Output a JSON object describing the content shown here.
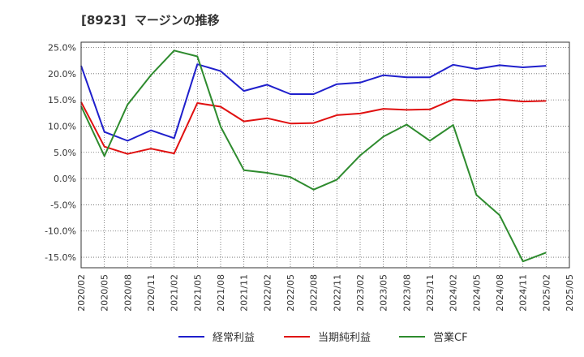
{
  "title": "[8923]  マージンの推移",
  "chart_data": {
    "type": "line",
    "x": [
      "2020/02",
      "2020/05",
      "2020/08",
      "2020/11",
      "2021/02",
      "2021/05",
      "2021/08",
      "2021/11",
      "2022/02",
      "2022/05",
      "2022/08",
      "2022/11",
      "2023/02",
      "2023/05",
      "2023/08",
      "2023/11",
      "2024/02",
      "2024/05",
      "2024/08",
      "2024/11",
      "2025/02",
      "2025/05"
    ],
    "yticks": [
      "25.0%",
      "20.0%",
      "15.0%",
      "10.0%",
      "5.0%",
      "0.0%",
      "-5.0%",
      "-10.0%",
      "-15.0%"
    ],
    "ylim": [
      -17,
      26
    ],
    "grid": true,
    "legend_position": "bottom",
    "series": [
      {
        "name": "経常利益",
        "color": "#1f1fcc",
        "values": [
          21.5,
          8.9,
          7.2,
          9.2,
          7.7,
          21.8,
          20.5,
          16.7,
          17.9,
          16.1,
          16.1,
          18.0,
          18.3,
          19.7,
          19.3,
          19.3,
          21.7,
          20.9,
          21.6,
          21.2,
          21.5,
          null
        ]
      },
      {
        "name": "当期純利益",
        "color": "#e01010",
        "values": [
          14.6,
          6.1,
          4.7,
          5.7,
          4.8,
          14.4,
          13.7,
          10.9,
          11.5,
          10.5,
          10.6,
          12.1,
          12.4,
          13.3,
          13.1,
          13.2,
          15.1,
          14.8,
          15.1,
          14.7,
          14.8,
          null
        ]
      },
      {
        "name": "営業CF",
        "color": "#2e8b2e",
        "values": [
          13.8,
          4.3,
          14.1,
          19.7,
          24.4,
          23.3,
          9.9,
          1.6,
          1.1,
          0.3,
          -2.1,
          -0.2,
          4.4,
          8.0,
          10.3,
          7.2,
          10.2,
          -3.1,
          -7.0,
          -15.8,
          -14.1,
          null
        ]
      }
    ]
  }
}
